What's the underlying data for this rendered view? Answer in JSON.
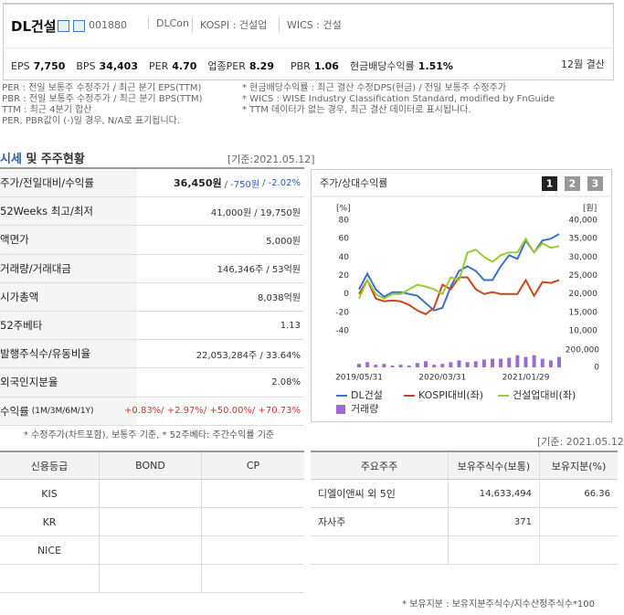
{
  "header": {
    "name": "DL건설",
    "code": "001880",
    "eng": "DLCon",
    "market": "KOSPI : 건설업",
    "wics": "WICS : 건설",
    "metrics": [
      {
        "key": "EPS",
        "value": "7,750"
      },
      {
        "key": "BPS",
        "value": "34,403"
      },
      {
        "key": "PER",
        "value": "4.70"
      },
      {
        "key": "업종PER",
        "value": "8.29"
      },
      {
        "key": "PBR",
        "value": "1.06"
      },
      {
        "key": "현금배당수익률",
        "value": "1.51%"
      }
    ],
    "fiscal": "12월 결산"
  },
  "notes": {
    "left": [
      "* PER : 전일 보통주 수정주가 / 최근 분기 EPS(TTM)",
      "* PBR : 전일 보통주 수정주가 / 최근 분기 BPS(TTM)",
      "* TTM : 최근 4분기 합산",
      "* PER, PBR값이 (-)일 경우, N/A로 표기됩니다."
    ],
    "right": [
      "* 현금배당수익률 : 최근 결산 수정DPS(현금) / 전일 보통주 수정주가",
      "* WICS : WISE Industry Classification Standard, modified by FnGuide",
      "* TTM 데이터가 없는 경우, 최근 결산 데이터로 표시됩니다."
    ]
  },
  "market": {
    "title_a": "시세",
    "title_b": " 및 주주현황",
    "date": "[기준:2021.05.12]",
    "rows": [
      {
        "label": "주가/전일대비/수익률",
        "value": [
          "36,450원",
          "/ -750원",
          "/ -2.02%"
        ]
      },
      {
        "label": "52Weeks 최고/최저",
        "value": [
          "41,000원 / 19,750원"
        ]
      },
      {
        "label": "액면가",
        "value": [
          "5,000원"
        ]
      },
      {
        "label": "거래량/거래대금",
        "value": [
          "146,346주 / 53억원"
        ]
      },
      {
        "label": "시가총액",
        "value": [
          "8,038억원"
        ]
      },
      {
        "label": "52주베타",
        "value": [
          "1.13"
        ]
      },
      {
        "label": "발행주식수/유동비율",
        "value": [
          "22,053,284주 / 33.64%"
        ]
      },
      {
        "label": "외국인지분율",
        "value": [
          "2.08%"
        ]
      },
      {
        "label": "수익률",
        "sub": "(1M/3M/6M/1Y)",
        "value": [
          "+0.83%/ +2.97%/ +50.00%/ +70.73%"
        ]
      }
    ],
    "note": "* 수정주가(차트포함), 보통주 기준, * 52주베타: 주간수익률 기준"
  },
  "chart_data": {
    "type": "line",
    "title": "주가/상대수익률",
    "buttons": [
      "1",
      "2",
      "3"
    ],
    "ylabel": "[%]",
    "y2label": "[원]",
    "categories": [
      "2019/05/31",
      null,
      null,
      null,
      null,
      null,
      null,
      null,
      null,
      null,
      "2020/03/31",
      null,
      null,
      null,
      null,
      null,
      null,
      null,
      null,
      null,
      "2021/01/29",
      null,
      null,
      null,
      null
    ],
    "ylim": [
      -40,
      80
    ],
    "yticks": [
      -40,
      -20,
      0,
      20,
      40,
      60,
      80
    ],
    "y2lim": [
      10000,
      40000
    ],
    "y2ticks": [
      {
        "value": 10000,
        "label": "10,000"
      },
      {
        "value": 15000,
        "label": "15,000"
      },
      {
        "value": 20000,
        "label": "20,000"
      },
      {
        "value": 25000,
        "label": "25,000"
      },
      {
        "value": 30000,
        "label": "30,000"
      },
      {
        "value": 35000,
        "label": "35,000"
      },
      {
        "value": 40000,
        "label": "40,000"
      }
    ],
    "vlim": [
      0,
      200000
    ],
    "vticks": [
      0,
      {
        "value": 200000,
        "label": "200,000"
      }
    ],
    "series": [
      {
        "name": "DL건설",
        "color": "#3a6fd0",
        "axis": "y2",
        "values": [
          21250,
          25500,
          21250,
          19250,
          20500,
          20500,
          20000,
          19500,
          17500,
          15500,
          16250,
          22000,
          26250,
          27500,
          26250,
          23750,
          23750,
          27500,
          30500,
          29500,
          34500,
          31250,
          34500,
          35000,
          36250
        ]
      },
      {
        "name": "KOSPI대비(좌)",
        "color": "#c8471f",
        "values": [
          0,
          15,
          -5,
          -8,
          -7,
          -8,
          -12,
          -18,
          -22,
          -15,
          10,
          5,
          18,
          18,
          5,
          0,
          2,
          0,
          0,
          0,
          15,
          -2,
          13,
          12,
          15
        ]
      },
      {
        "name": "건설업대비(좌)",
        "color": "#9acd32",
        "values": [
          -5,
          15,
          0,
          -5,
          0,
          0,
          5,
          10,
          8,
          5,
          0,
          18,
          15,
          45,
          48,
          40,
          35,
          42,
          45,
          45,
          60,
          45,
          55,
          50,
          52
        ]
      },
      {
        "name": "거래량",
        "color": "#9b6bd0",
        "axis": "volume",
        "type": "bar",
        "values": [
          40000,
          60000,
          30000,
          40000,
          20000,
          30000,
          20000,
          50000,
          70000,
          30000,
          40000,
          60000,
          80000,
          60000,
          70000,
          90000,
          100000,
          100000,
          110000,
          140000,
          120000,
          140000,
          100000,
          80000,
          120000
        ]
      }
    ]
  },
  "lower_date": "[기준: 2021.05.12]",
  "ratings": {
    "header": [
      "신용등급",
      "BOND",
      "CP"
    ],
    "rows": [
      [
        "KIS"
      ],
      [
        "KR"
      ],
      [
        "NICE"
      ]
    ]
  },
  "shareholders": {
    "header": [
      "주요주주",
      "보유주식수(보통)",
      "보유지분(%)"
    ],
    "rows": [
      [
        "디엘이앤씨 외 5인",
        "14,633,494",
        "66.36"
      ],
      [
        "자사주",
        "371"
      ]
    ]
  },
  "footer": "* 보유지분 : 보유지분주식수/지수산정주식수*100"
}
